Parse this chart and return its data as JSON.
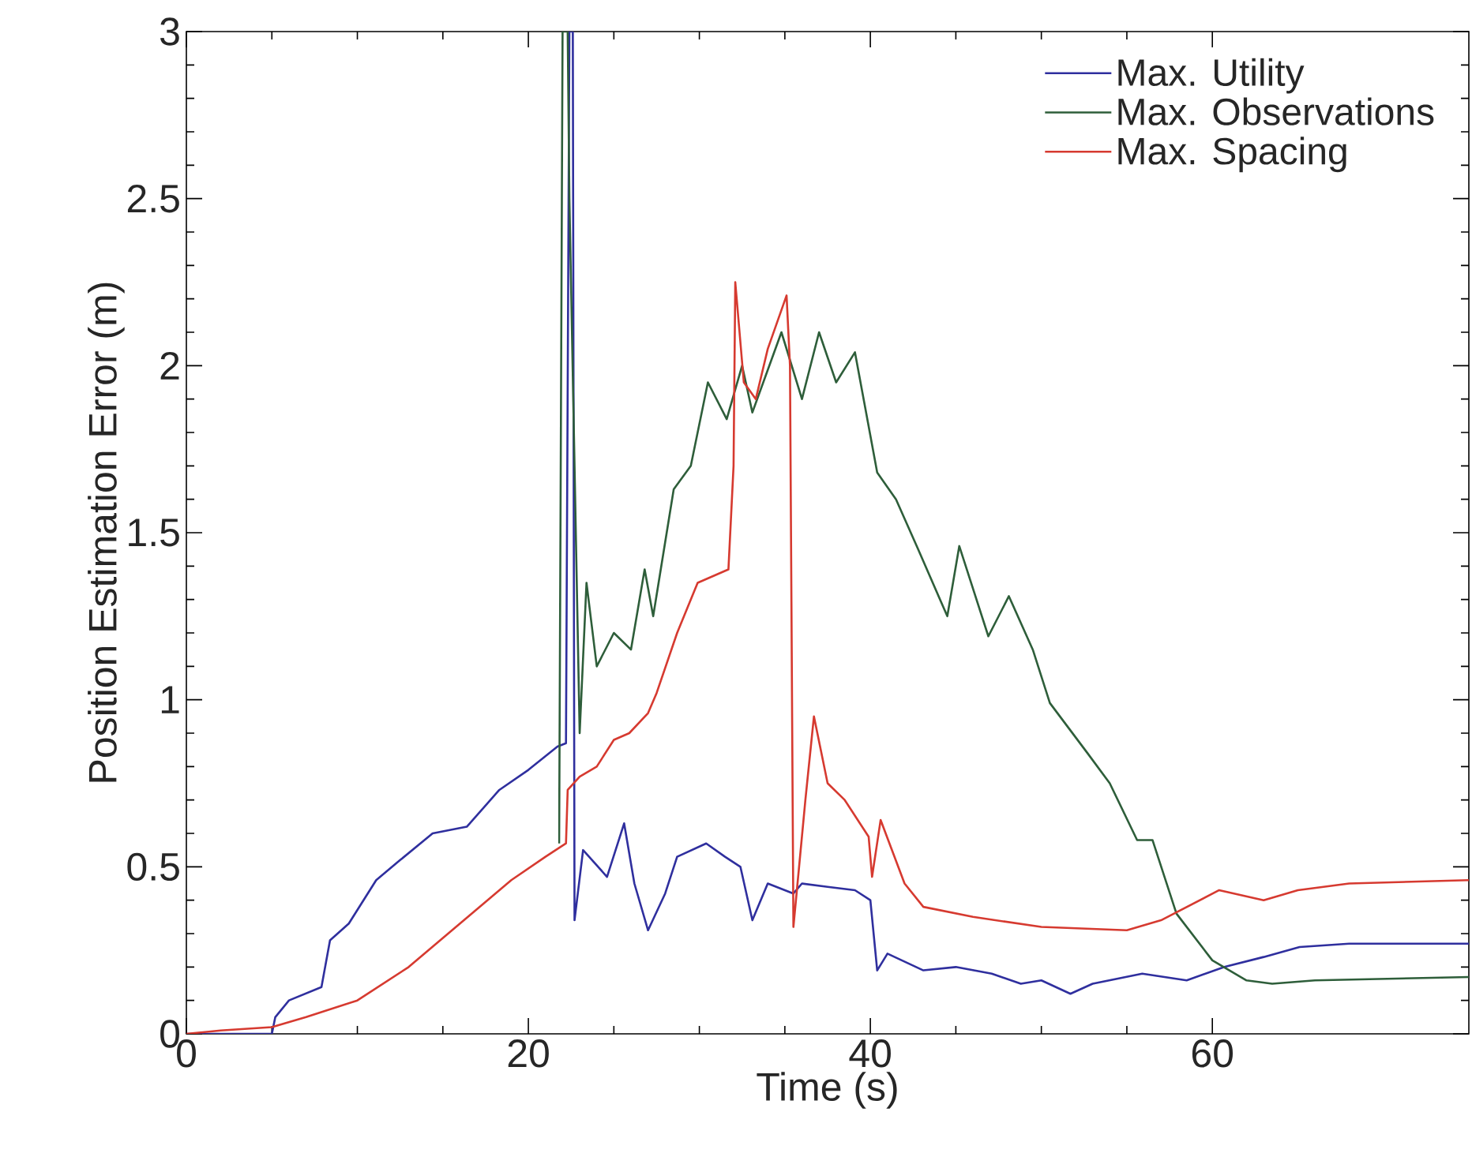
{
  "chart_data": {
    "type": "line",
    "xlabel": "Time (s)",
    "ylabel": "Position Estimation Error (m)",
    "xlim": [
      0,
      75
    ],
    "ylim": [
      0,
      3
    ],
    "xticks": [
      0,
      20,
      40,
      60
    ],
    "yticks": [
      0,
      0.5,
      1,
      1.5,
      2,
      2.5,
      3
    ],
    "legend": "top right",
    "series": [
      {
        "name": "Max. Utility",
        "color": "#2f2f9e",
        "x": [
          0,
          5,
          5.2,
          6,
          7.9,
          8.4,
          9.5,
          11.1,
          12.5,
          14.4,
          16.4,
          18.3,
          20,
          21.7,
          22.2,
          22.4,
          22.6,
          22.7,
          23.2,
          24.6,
          25.6,
          26.2,
          27,
          28,
          28.7,
          30.4,
          31.5,
          32.4,
          33.1,
          34,
          35.5,
          36,
          37.5,
          39.1,
          40,
          40.4,
          41,
          43.1,
          45,
          47.1,
          48.8,
          50,
          51.7,
          53,
          55.9,
          58.5,
          60.7,
          63,
          65.1,
          68,
          75
        ],
        "values": [
          0,
          0,
          0.05,
          0.1,
          0.14,
          0.28,
          0.33,
          0.46,
          0.52,
          0.6,
          0.62,
          0.73,
          0.79,
          0.86,
          0.87,
          3,
          3,
          0.34,
          0.55,
          0.47,
          0.63,
          0.45,
          0.31,
          0.42,
          0.53,
          0.57,
          0.53,
          0.5,
          0.34,
          0.45,
          0.42,
          0.45,
          0.44,
          0.43,
          0.4,
          0.19,
          0.24,
          0.19,
          0.2,
          0.18,
          0.15,
          0.16,
          0.12,
          0.15,
          0.18,
          0.16,
          0.2,
          0.23,
          0.26,
          0.27,
          0.27
        ]
      },
      {
        "name": "Max. Observations",
        "color": "#2e5e3a",
        "x": [
          21.8,
          22.0,
          22.3,
          22.4,
          23.0,
          23.4,
          24.0,
          25.0,
          26.0,
          26.8,
          27.3,
          28.5,
          29.5,
          30.5,
          31.6,
          32.5,
          33.1,
          34.8,
          36,
          37,
          38,
          39.1,
          40.4,
          41.5,
          42.8,
          44.5,
          45.2,
          46.9,
          48.1,
          49.5,
          50.5,
          52.7,
          54,
          55.6,
          56.5,
          57.9,
          60,
          62,
          63.5,
          66,
          75
        ],
        "values": [
          0.57,
          3,
          3,
          2.5,
          0.9,
          1.35,
          1.1,
          1.2,
          1.15,
          1.39,
          1.25,
          1.63,
          1.7,
          1.95,
          1.84,
          2.0,
          1.86,
          2.1,
          1.9,
          2.1,
          1.95,
          2.04,
          1.68,
          1.6,
          1.45,
          1.25,
          1.46,
          1.19,
          1.31,
          1.15,
          0.99,
          0.84,
          0.75,
          0.58,
          0.58,
          0.36,
          0.22,
          0.16,
          0.15,
          0.16,
          0.17
        ]
      },
      {
        "name": "Max. Spacing",
        "color": "#d63a30",
        "x": [
          0,
          2,
          5,
          7,
          10,
          13,
          16,
          19,
          21,
          22.2,
          22.3,
          23,
          24,
          25,
          25.9,
          27,
          27.5,
          28.7,
          29.9,
          31.7,
          32,
          32.1,
          32.6,
          33.3,
          34,
          35.1,
          35.3,
          35.5,
          36.2,
          36.7,
          37.5,
          38.5,
          39.9,
          40.1,
          40.6,
          42,
          43.1,
          46,
          50,
          55,
          57,
          60.4,
          63,
          65,
          68,
          75
        ],
        "values": [
          0,
          0.01,
          0.02,
          0.05,
          0.1,
          0.2,
          0.33,
          0.46,
          0.53,
          0.57,
          0.73,
          0.77,
          0.8,
          0.88,
          0.9,
          0.96,
          1.02,
          1.2,
          1.35,
          1.39,
          1.7,
          2.25,
          1.95,
          1.9,
          2.05,
          2.21,
          2.0,
          0.32,
          0.7,
          0.95,
          0.75,
          0.7,
          0.59,
          0.47,
          0.64,
          0.45,
          0.38,
          0.35,
          0.32,
          0.31,
          0.34,
          0.43,
          0.4,
          0.43,
          0.45,
          0.46
        ]
      }
    ]
  }
}
